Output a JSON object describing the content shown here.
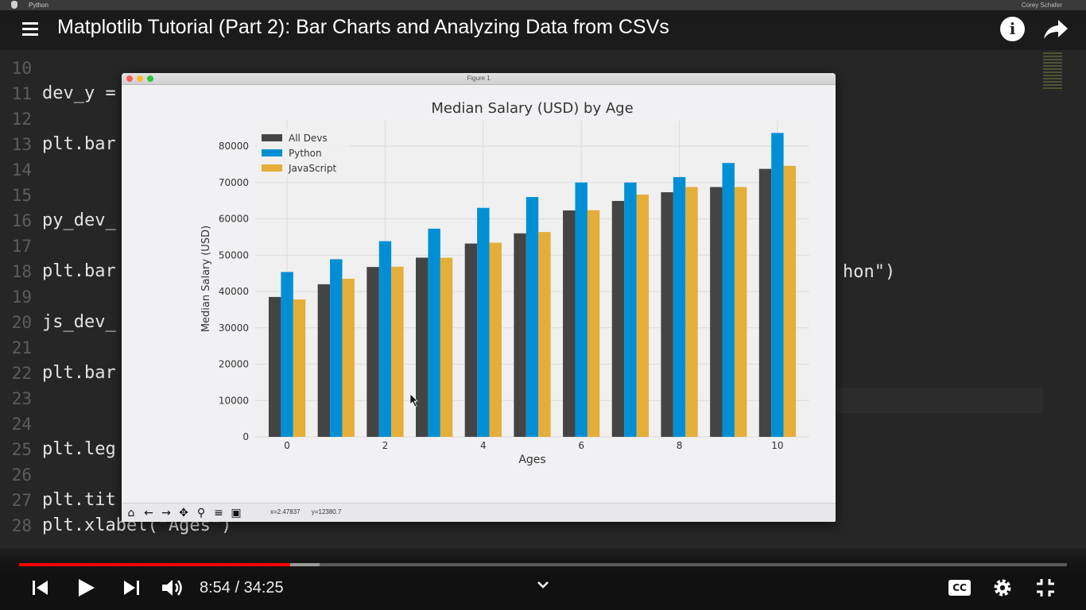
{
  "mac_menubar": {
    "app_name": "Python",
    "right_user": "Corey Schafer"
  },
  "video": {
    "title": "Matplotlib Tutorial (Part 2): Bar Charts and Analyzing Data from CSVs"
  },
  "editor": {
    "lines": [
      {
        "num": "10",
        "code": ""
      },
      {
        "num": "11",
        "code": "dev_y ="
      },
      {
        "num": "12",
        "code": ""
      },
      {
        "num": "13",
        "code": "plt.bar"
      },
      {
        "num": "14",
        "code": ""
      },
      {
        "num": "15",
        "code": ""
      },
      {
        "num": "16",
        "code": "py_dev_"
      },
      {
        "num": "17",
        "code": ""
      },
      {
        "num": "18",
        "code": "plt.bar"
      },
      {
        "num": "19",
        "code": ""
      },
      {
        "num": "20",
        "code": "js_dev_"
      },
      {
        "num": "21",
        "code": ""
      },
      {
        "num": "22",
        "code": "plt.bar"
      },
      {
        "num": "23",
        "code": ""
      },
      {
        "num": "24",
        "code": ""
      },
      {
        "num": "25",
        "code": "plt.leg"
      },
      {
        "num": "26",
        "code": ""
      },
      {
        "num": "27",
        "code": "plt.tit"
      },
      {
        "num": "28",
        "code": "plt.xlabel(\"Ages\")"
      }
    ],
    "right_fragment": "hon\")"
  },
  "figure_window": {
    "window_title": "Figure 1",
    "toolbar_icons": [
      "home-icon",
      "back-arrow-icon",
      "forward-arrow-icon",
      "pan-icon",
      "zoom-icon",
      "configure-icon",
      "save-icon"
    ],
    "coord_x": "x=2.47837",
    "coord_y": "y=12380.7"
  },
  "chart_data": {
    "type": "bar",
    "title": "Median Salary (USD) by Age",
    "xlabel": "Ages",
    "ylabel": "Median Salary (USD)",
    "x": [
      0,
      1,
      2,
      3,
      4,
      5,
      6,
      7,
      8,
      9,
      10
    ],
    "xticks": [
      0,
      2,
      4,
      6,
      8,
      10
    ],
    "xlim": [
      -0.65,
      10.65
    ],
    "yticks": [
      0,
      10000,
      20000,
      30000,
      40000,
      50000,
      60000,
      70000,
      80000
    ],
    "ylim": [
      0,
      87000
    ],
    "grid": true,
    "legend_position": "top-left",
    "series": [
      {
        "name": "All Devs",
        "color": "#444444",
        "values": [
          38496,
          42000,
          46752,
          49320,
          53200,
          56000,
          62316,
          64928,
          67317,
          68748,
          73752
        ]
      },
      {
        "name": "Python",
        "color": "#008fd5",
        "values": [
          45372,
          48876,
          53850,
          57287,
          63016,
          65998,
          70003,
          70000,
          71496,
          75370,
          83640
        ]
      },
      {
        "name": "JavaScript",
        "color": "#e5ae38",
        "values": [
          37810,
          43515,
          46823,
          49293,
          53437,
          56373,
          62375,
          66674,
          68745,
          68746,
          74583
        ]
      }
    ]
  },
  "player": {
    "current_time": "8:54",
    "separator": " / ",
    "duration": "34:25",
    "played_fraction": 0.2586,
    "buffered_fraction": 0.2868,
    "cc_label": "CC",
    "icons": [
      "previous-icon",
      "play-icon",
      "next-icon",
      "volume-icon",
      "chevron-up-icon",
      "settings-gear-icon",
      "exit-fullscreen-icon"
    ]
  },
  "colors": {
    "progress_played": "#ff0000",
    "editor_bg": "#262626"
  }
}
